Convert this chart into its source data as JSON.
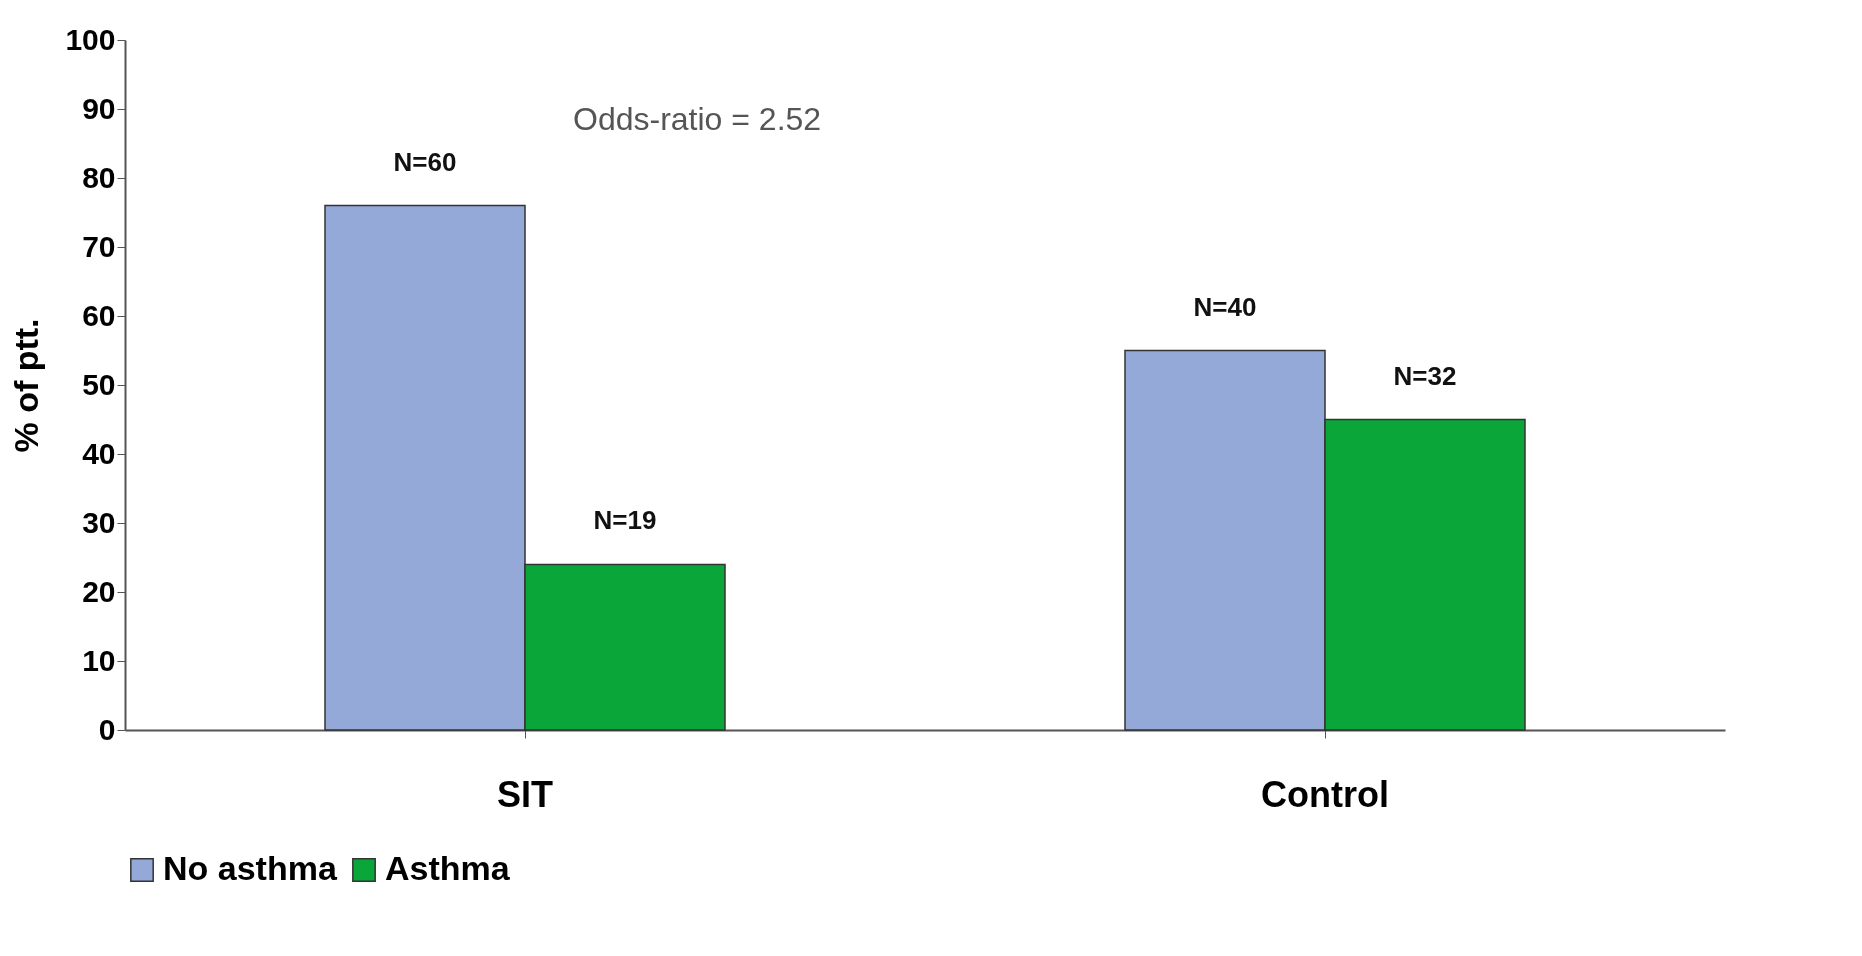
{
  "chart_data": {
    "type": "bar",
    "categories": [
      "SIT",
      "Control"
    ],
    "series": [
      {
        "name": "No asthma",
        "color": "#95a9d9",
        "values": [
          76,
          55
        ]
      },
      {
        "name": "Asthma",
        "color": "#0aa63a",
        "values": [
          24,
          45
        ]
      }
    ],
    "ylabel": "% of ptt.",
    "ylim": [
      0,
      100
    ],
    "yticks": [
      0,
      10,
      20,
      30,
      40,
      50,
      60,
      70,
      80,
      90,
      100
    ],
    "annotations": [
      "Odds-ratio = 2.52",
      {
        "text": "N=60",
        "x": "SIT",
        "y": 76
      },
      {
        "text": "N=19",
        "x": "SIT",
        "y": 24
      },
      {
        "text": "N=40",
        "x": "Control",
        "y": 55
      },
      {
        "text": "N=32",
        "x": "Control",
        "y": 45
      }
    ],
    "legend": "bottom",
    "grid": false
  }
}
